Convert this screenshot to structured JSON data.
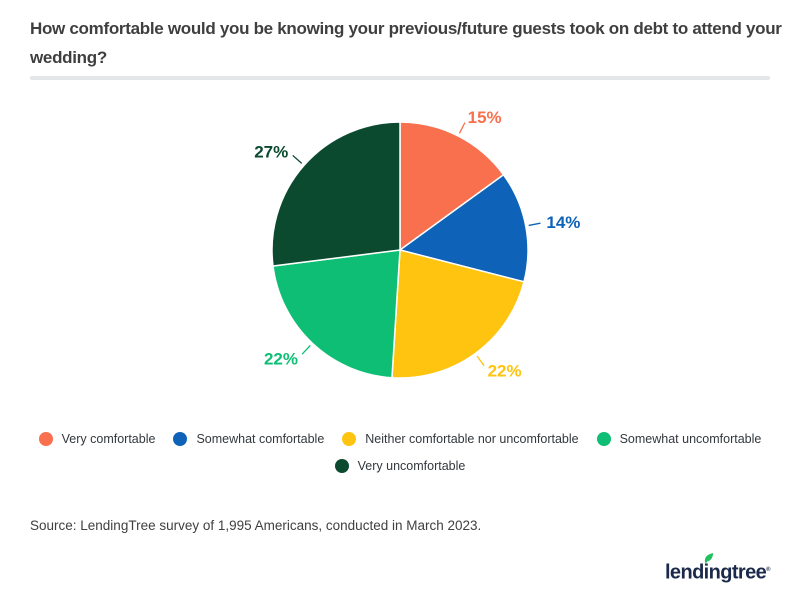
{
  "title": "How comfortable would you be knowing your previous/future guests took on debt to attend your wedding?",
  "chart_data": {
    "type": "pie",
    "title": "How comfortable would you be knowing your previous/future guests took on debt to attend your wedding?",
    "categories": [
      "Very comfortable",
      "Somewhat comfortable",
      "Neither comfortable nor uncomfortable",
      "Somewhat uncomfortable",
      "Very uncomfortable"
    ],
    "values": [
      15,
      14,
      22,
      22,
      27
    ],
    "data_labels": [
      "15%",
      "14%",
      "22%",
      "22%",
      "27%"
    ],
    "colors": [
      "#F9704F",
      "#0E63B8",
      "#FEC40F",
      "#0FBE75",
      "#0B4A2F"
    ],
    "start_angle_deg": 0,
    "direction": "clockwise",
    "legend_position": "bottom"
  },
  "source": "Source: LendingTree survey of 1,995 Americans, conducted in March 2023.",
  "logo": {
    "text": "lendingtree",
    "registered_mark": "®",
    "text_color": "#1B2A4B",
    "leaf_color": "#21C25E"
  },
  "style": {
    "title_color": "#3F3F3F",
    "divider_color": "#E4E6E8",
    "legend_text_color": "#33383D"
  }
}
